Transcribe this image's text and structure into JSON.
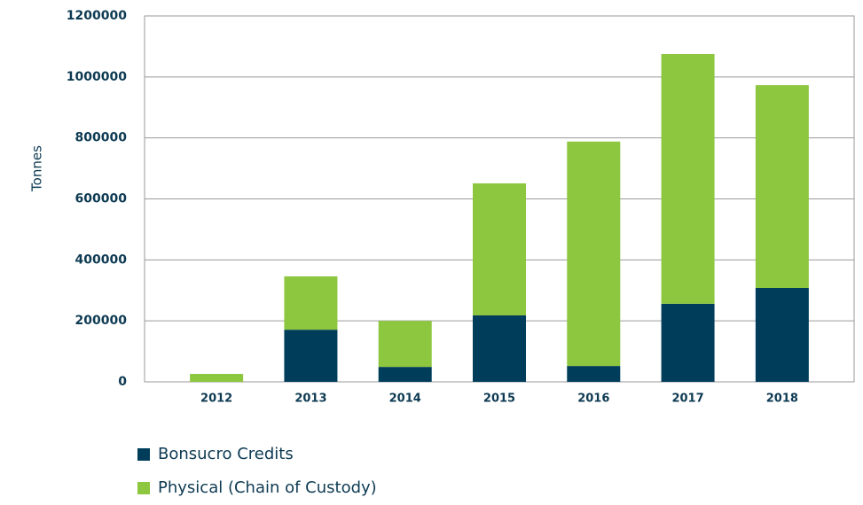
{
  "chart_data": {
    "type": "stacked_bar",
    "y_label": "Tonnes",
    "categories": [
      "2012",
      "2013",
      "2014",
      "2015",
      "2016",
      "2017",
      "2018"
    ],
    "series": [
      {
        "name": "Bonsucro Credits",
        "color": "#003d5b",
        "values": [
          0,
          171000,
          49000,
          218000,
          52000,
          256000,
          308000
        ]
      },
      {
        "name": "Physical (Chain of Custody)",
        "color": "#8dc63f",
        "values": [
          26000,
          175000,
          151000,
          433000,
          736000,
          819000,
          665000
        ]
      }
    ],
    "ylim": [
      0,
      1200000
    ],
    "yticks": [
      0,
      200000,
      400000,
      600000,
      800000,
      1000000,
      1200000
    ],
    "grid": true
  }
}
